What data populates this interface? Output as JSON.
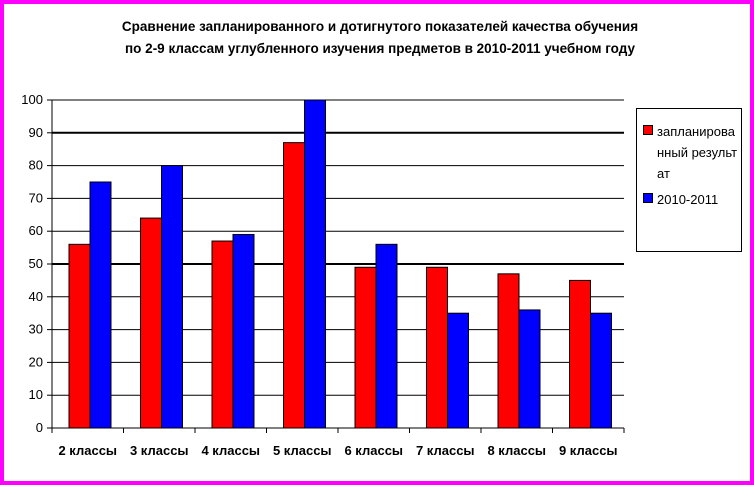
{
  "chart_data": {
    "type": "bar",
    "title_lines": [
      "Сравнение запланированного и дотигнутого показателей качества обучения",
      "по 2-9 классам углубленного изучения предметов в 2010-2011 учебном году"
    ],
    "categories": [
      "2 классы",
      "3 классы",
      "4 классы",
      "5 классы",
      "6 классы",
      "7 классы",
      "8 классы",
      "9 классы"
    ],
    "series": [
      {
        "name": "запланированный результат",
        "color": "#ff0000",
        "values": [
          56,
          64,
          57,
          87,
          49,
          49,
          47,
          45
        ]
      },
      {
        "name": "2010-2011",
        "color": "#0000ff",
        "values": [
          75,
          80,
          59,
          100,
          56,
          35,
          36,
          35
        ]
      }
    ],
    "ylim": [
      0,
      100
    ],
    "yticks": [
      0,
      10,
      20,
      30,
      40,
      50,
      60,
      70,
      80,
      90,
      100
    ],
    "grid": true,
    "legend_position": "right"
  },
  "frame_color": "#ff00ff"
}
